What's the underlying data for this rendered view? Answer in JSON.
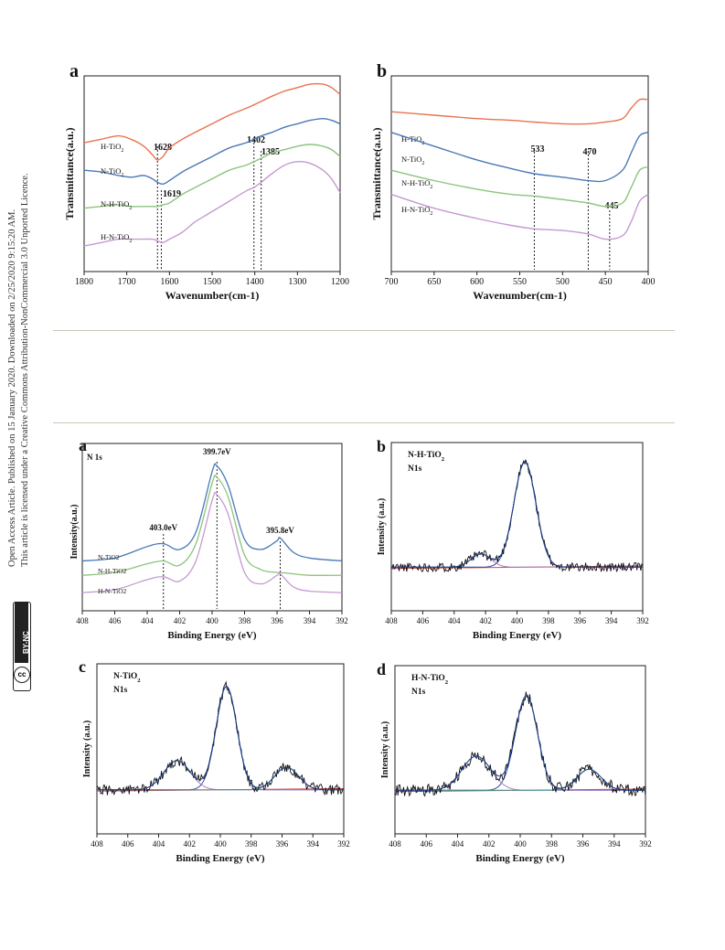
{
  "side_note": {
    "line1": "Open Access Article. Published on 15 January 2020. Downloaded on 2/25/2020 9:15:20 AM.",
    "line2": "This article is licensed under a Creative Commons Attribution-NonCommercial 3.0 Unported Licence.",
    "badge_cc": "cc",
    "badge_bync": "BY-NC"
  },
  "colors": {
    "h_tio2": "#e8734f",
    "n_tio2": "#4a79b8",
    "nh_tio2": "#8cc47a",
    "hn_tio2": "#c59ad1",
    "fit_envelope": "#2b4fa8",
    "fit_component": "#a77ac4",
    "fit_baseline": "#d44a4a",
    "raw": "#111111"
  },
  "chart_data": [
    {
      "panel": "a",
      "type": "line",
      "xlabel": "Wavenumber(cm-1)",
      "ylabel": "Transmittance(a.u.)",
      "xlim": [
        1800,
        1200
      ],
      "xticks": [
        "1800",
        "1700",
        "1600",
        "1500",
        "1400",
        "1300",
        "1200"
      ],
      "series": [
        {
          "name": "H-TiO₂",
          "x": [
            1800,
            1760,
            1720,
            1690,
            1660,
            1640,
            1628,
            1615,
            1600,
            1570,
            1540,
            1500,
            1460,
            1420,
            1402,
            1385,
            1360,
            1330,
            1300,
            1270,
            1240,
            1220,
            1200
          ],
          "y": [
            0.68,
            0.7,
            0.72,
            0.7,
            0.66,
            0.61,
            0.58,
            0.6,
            0.65,
            0.7,
            0.74,
            0.79,
            0.84,
            0.88,
            0.9,
            0.92,
            0.95,
            0.98,
            1.0,
            1.02,
            1.02,
            1.0,
            0.96
          ]
        },
        {
          "name": "N-TiO₂",
          "x": [
            1800,
            1760,
            1720,
            1690,
            1660,
            1640,
            1628,
            1615,
            1600,
            1570,
            1540,
            1500,
            1460,
            1420,
            1402,
            1385,
            1360,
            1330,
            1300,
            1270,
            1240,
            1220,
            1200
          ],
          "y": [
            0.52,
            0.51,
            0.49,
            0.48,
            0.49,
            0.47,
            0.45,
            0.44,
            0.46,
            0.51,
            0.55,
            0.6,
            0.65,
            0.68,
            0.7,
            0.72,
            0.74,
            0.77,
            0.79,
            0.81,
            0.82,
            0.81,
            0.79
          ]
        },
        {
          "name": "N-H-TiO₂",
          "x": [
            1800,
            1760,
            1720,
            1690,
            1660,
            1640,
            1628,
            1615,
            1600,
            1570,
            1540,
            1500,
            1460,
            1420,
            1402,
            1385,
            1360,
            1330,
            1300,
            1270,
            1240,
            1220,
            1200
          ],
          "y": [
            0.3,
            0.31,
            0.32,
            0.31,
            0.31,
            0.31,
            0.31,
            0.32,
            0.33,
            0.38,
            0.42,
            0.47,
            0.52,
            0.55,
            0.57,
            0.59,
            0.62,
            0.64,
            0.66,
            0.67,
            0.66,
            0.64,
            0.6
          ]
        },
        {
          "name": "H-N-TiO₂",
          "x": [
            1800,
            1760,
            1720,
            1690,
            1660,
            1640,
            1628,
            1615,
            1600,
            1570,
            1540,
            1500,
            1460,
            1420,
            1402,
            1385,
            1360,
            1330,
            1300,
            1270,
            1240,
            1220,
            1200
          ],
          "y": [
            0.08,
            0.1,
            0.12,
            0.12,
            0.12,
            0.12,
            0.11,
            0.1,
            0.12,
            0.16,
            0.22,
            0.28,
            0.34,
            0.4,
            0.42,
            0.45,
            0.5,
            0.55,
            0.57,
            0.56,
            0.52,
            0.47,
            0.39
          ]
        }
      ],
      "annotations": [
        {
          "label": "1628",
          "x": 1628
        },
        {
          "label": "1619",
          "x": 1619
        },
        {
          "label": "1402",
          "x": 1402
        },
        {
          "label": "1385",
          "x": 1385
        }
      ]
    },
    {
      "panel": "b",
      "type": "line",
      "xlabel": "Wavenumber(cm-1)",
      "ylabel": "Transmittance(a.u.)",
      "xlim": [
        700,
        400
      ],
      "xticks": [
        "700",
        "650",
        "600",
        "550",
        "500",
        "450",
        "400"
      ],
      "series": [
        {
          "name": "H-TiO₂",
          "x": [
            700,
            650,
            600,
            560,
            533,
            500,
            470,
            450,
            430,
            420,
            410,
            400
          ],
          "y": [
            0.86,
            0.84,
            0.82,
            0.81,
            0.8,
            0.79,
            0.79,
            0.8,
            0.82,
            0.88,
            0.93,
            0.93
          ]
        },
        {
          "name": "N-TiO₂",
          "x": [
            700,
            650,
            600,
            560,
            533,
            500,
            470,
            450,
            430,
            420,
            410,
            400
          ],
          "y": [
            0.74,
            0.66,
            0.58,
            0.53,
            0.5,
            0.48,
            0.46,
            0.46,
            0.52,
            0.62,
            0.72,
            0.74
          ]
        },
        {
          "name": "N-H-TiO₂",
          "x": [
            700,
            650,
            600,
            560,
            533,
            500,
            470,
            450,
            430,
            420,
            410,
            400
          ],
          "y": [
            0.52,
            0.46,
            0.41,
            0.38,
            0.37,
            0.35,
            0.33,
            0.31,
            0.33,
            0.42,
            0.52,
            0.54
          ]
        },
        {
          "name": "H-N-TiO₂",
          "x": [
            700,
            650,
            600,
            560,
            533,
            500,
            470,
            450,
            430,
            420,
            410,
            400
          ],
          "y": [
            0.38,
            0.3,
            0.24,
            0.2,
            0.18,
            0.17,
            0.15,
            0.12,
            0.14,
            0.22,
            0.34,
            0.38
          ]
        }
      ],
      "annotations": [
        {
          "label": "533",
          "x": 533
        },
        {
          "label": "470",
          "x": 470
        },
        {
          "label": "445",
          "x": 445
        }
      ]
    },
    {
      "panel": "a",
      "type": "line",
      "title": "N 1s",
      "xlabel": "Binding Energy (eV)",
      "ylabel": "Intensity(a.u.)",
      "xlim": [
        408,
        392
      ],
      "xticks": [
        "408",
        "406",
        "404",
        "402",
        "400",
        "398",
        "396",
        "394",
        "392"
      ],
      "series": [
        {
          "name": "N-TiO2",
          "x": [
            408,
            406,
            404,
            403,
            402,
            401,
            400,
            399.7,
            399,
            398,
            397,
            396,
            395.8,
            395,
            394,
            392
          ],
          "y": [
            0.3,
            0.32,
            0.4,
            0.42,
            0.38,
            0.5,
            0.92,
            0.96,
            0.82,
            0.45,
            0.38,
            0.44,
            0.46,
            0.36,
            0.32,
            0.3
          ]
        },
        {
          "name": "N-H-TiO2",
          "x": [
            408,
            406,
            404,
            403,
            402,
            401,
            400,
            399.7,
            399,
            398,
            397,
            396,
            395.8,
            395,
            394,
            392
          ],
          "y": [
            0.2,
            0.22,
            0.28,
            0.3,
            0.27,
            0.42,
            0.84,
            0.88,
            0.74,
            0.34,
            0.24,
            0.22,
            0.22,
            0.21,
            0.2,
            0.2
          ]
        },
        {
          "name": "H-N-TiO2",
          "x": [
            408,
            406,
            404,
            403,
            402,
            401,
            400,
            399.7,
            399,
            398,
            397,
            396,
            395.8,
            395,
            394,
            392
          ],
          "y": [
            0.08,
            0.1,
            0.17,
            0.19,
            0.16,
            0.3,
            0.72,
            0.76,
            0.62,
            0.22,
            0.14,
            0.2,
            0.21,
            0.12,
            0.09,
            0.08
          ]
        }
      ],
      "annotations": [
        {
          "label": "403.0eV",
          "x": 403.0
        },
        {
          "label": "399.7eV",
          "x": 399.7
        },
        {
          "label": "395.8eV",
          "x": 395.8
        }
      ]
    },
    {
      "panel": "b",
      "type": "line",
      "title": "N-H-TiO₂",
      "subtitle": "N1s",
      "xlabel": "Binding Energy (eV)",
      "ylabel": "Intensity (a.u.)",
      "xlim": [
        408,
        392
      ],
      "xticks": [
        "408",
        "406",
        "404",
        "402",
        "400",
        "398",
        "396",
        "394",
        "392"
      ],
      "peaks": [
        {
          "center": 399.5,
          "height": 0.8,
          "width": 1.0
        },
        {
          "center": 402.3,
          "height": 0.1,
          "width": 0.9
        }
      ],
      "baseline": 0.05,
      "noise": 0.035
    },
    {
      "panel": "c",
      "type": "line",
      "title": "N-TiO₂",
      "subtitle": "N1s",
      "xlabel": "Binding Energy (eV)",
      "ylabel": "Intensity (a.u.)",
      "xlim": [
        408,
        392
      ],
      "xticks": [
        "408",
        "406",
        "404",
        "402",
        "400",
        "398",
        "396",
        "394",
        "392"
      ],
      "peaks": [
        {
          "center": 399.6,
          "height": 0.78,
          "width": 0.95
        },
        {
          "center": 402.8,
          "height": 0.22,
          "width": 1.2
        },
        {
          "center": 395.7,
          "height": 0.17,
          "width": 1.1
        }
      ],
      "baseline": 0.05,
      "noise": 0.04
    },
    {
      "panel": "d",
      "type": "line",
      "title": "H-N-TiO₂",
      "subtitle": "N1s",
      "xlabel": "Binding Energy (eV)",
      "ylabel": "Intensity (a.u.)",
      "xlim": [
        408,
        392
      ],
      "xticks": [
        "408",
        "406",
        "404",
        "402",
        "400",
        "398",
        "396",
        "394",
        "392"
      ],
      "peaks": [
        {
          "center": 399.6,
          "height": 0.72,
          "width": 1.0
        },
        {
          "center": 402.8,
          "height": 0.26,
          "width": 1.3
        },
        {
          "center": 395.6,
          "height": 0.16,
          "width": 1.1
        }
      ],
      "baseline": 0.05,
      "noise": 0.045
    }
  ]
}
